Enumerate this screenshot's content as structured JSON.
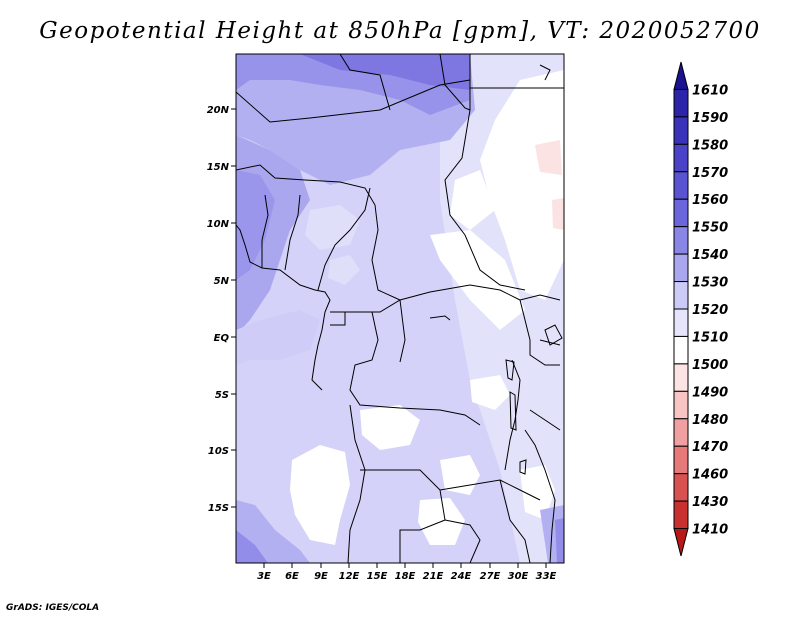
{
  "title": "Geopotential Height at 850hPa [gpm], VT: 2020052700",
  "footer": "GrADS: IGES/COLA",
  "lat_labels": [
    "20N",
    "15N",
    "10N",
    "5N",
    "EQ",
    "5S",
    "10S",
    "15S"
  ],
  "lon_labels": [
    "3E",
    "6E",
    "9E",
    "12E",
    "15E",
    "18E",
    "21E",
    "24E",
    "27E",
    "30E",
    "33E"
  ],
  "colorbar": {
    "labels": [
      "1610",
      "1590",
      "1580",
      "1570",
      "1560",
      "1550",
      "1540",
      "1530",
      "1520",
      "1510",
      "1500",
      "1490",
      "1480",
      "1470",
      "1460",
      "1430",
      "1410"
    ],
    "colors": [
      "#1a1290",
      "#2b23a8",
      "#3a32b8",
      "#4a43c8",
      "#5a53d2",
      "#6b66dc",
      "#8a86e6",
      "#aaa7ef",
      "#cccaf6",
      "#e6e5fb",
      "#ffffff",
      "#fde4e4",
      "#f8c4c4",
      "#f0a0a0",
      "#e67a7a",
      "#d85252",
      "#c93030",
      "#b81818"
    ]
  },
  "legend_colors": {
    "dark": "#7a73dc",
    "mid": "#a9a5ee",
    "light": "#cfcdf7",
    "pale": "#e2e1fb",
    "white": "#ffffff",
    "pink": "#fbe3e3"
  }
}
